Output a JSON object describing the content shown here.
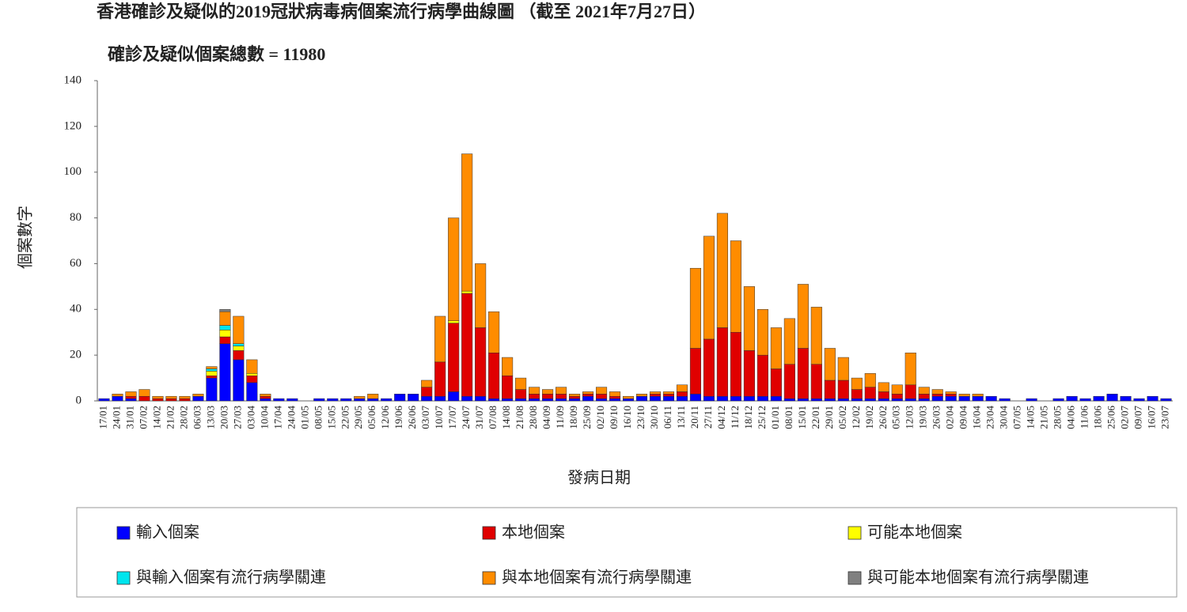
{
  "chart_data": {
    "type": "bar",
    "stacked": true,
    "title": "香港確診及疑似的2019冠狀病毒病個案流行病學曲線圖 （截至 2021年7月27日）",
    "subtitle": "確診及疑似個案總數 = 11980",
    "y_label": "個案數字",
    "x_label": "發病日期",
    "ylim": [
      0,
      140
    ],
    "yticks": [
      0,
      20,
      40,
      60,
      80,
      100,
      120,
      140
    ],
    "grid": false,
    "categories": [
      "17/01",
      "24/01",
      "31/01",
      "07/02",
      "14/02",
      "21/02",
      "28/02",
      "06/03",
      "13/03",
      "20/03",
      "27/03",
      "03/04",
      "10/04",
      "17/04",
      "24/04",
      "01/05",
      "08/05",
      "15/05",
      "22/05",
      "29/05",
      "05/06",
      "12/06",
      "19/06",
      "26/06",
      "03/07",
      "10/07",
      "17/07",
      "24/07",
      "31/07",
      "07/08",
      "14/08",
      "21/08",
      "28/08",
      "04/09",
      "11/09",
      "18/09",
      "25/09",
      "02/10",
      "09/10",
      "16/10",
      "23/10",
      "30/10",
      "06/11",
      "13/11",
      "20/11",
      "27/11",
      "04/12",
      "11/12",
      "18/12",
      "25/12",
      "01/01",
      "08/01",
      "15/01",
      "22/01",
      "29/01",
      "05/02",
      "12/02",
      "19/02",
      "26/02",
      "05/03",
      "12/03",
      "19/03",
      "26/03",
      "02/04",
      "09/04",
      "16/04",
      "23/04",
      "30/04",
      "07/05",
      "14/05",
      "21/05",
      "28/05",
      "04/06",
      "11/06",
      "18/06",
      "25/06",
      "02/07",
      "09/07",
      "16/07",
      "23/07"
    ],
    "series": [
      {
        "name": "輸入個案",
        "color": "#0000ff",
        "values": [
          1,
          2,
          1,
          0,
          0,
          0,
          0,
          2,
          10,
          25,
          18,
          8,
          1,
          1,
          1,
          0,
          1,
          1,
          1,
          1,
          1,
          1,
          3,
          3,
          2,
          2,
          4,
          2,
          2,
          1,
          1,
          1,
          1,
          1,
          1,
          1,
          2,
          1,
          1,
          1,
          2,
          2,
          2,
          2,
          3,
          2,
          2,
          2,
          2,
          2,
          2,
          1,
          1,
          1,
          1,
          1,
          1,
          1,
          1,
          1,
          1,
          1,
          2,
          2,
          2,
          2,
          2,
          1,
          0,
          1,
          0,
          1,
          2,
          1,
          2,
          3,
          2,
          1,
          2,
          1
        ]
      },
      {
        "name": "本地個案",
        "color": "#e00000",
        "values": [
          0,
          0,
          1,
          2,
          1,
          1,
          1,
          0,
          1,
          3,
          4,
          3,
          1,
          0,
          0,
          0,
          0,
          0,
          0,
          0,
          0,
          0,
          0,
          0,
          4,
          15,
          30,
          45,
          30,
          20,
          10,
          4,
          2,
          2,
          2,
          1,
          1,
          2,
          1,
          0,
          0,
          1,
          1,
          2,
          20,
          25,
          30,
          28,
          20,
          18,
          12,
          15,
          22,
          15,
          8,
          8,
          4,
          5,
          3,
          2,
          6,
          2,
          1,
          1,
          0,
          0,
          0,
          0,
          0,
          0,
          0,
          0,
          0,
          0,
          0,
          0,
          0,
          0,
          0,
          0
        ]
      },
      {
        "name": "可能本地個案",
        "color": "#ffff00",
        "values": [
          0,
          0,
          0,
          0,
          0,
          0,
          0,
          0,
          2,
          3,
          2,
          1,
          0,
          0,
          0,
          0,
          0,
          0,
          0,
          0,
          0,
          0,
          0,
          0,
          0,
          0,
          1,
          1,
          0,
          0,
          0,
          0,
          0,
          0,
          0,
          0,
          0,
          0,
          0,
          0,
          0,
          0,
          0,
          0,
          0,
          0,
          0,
          0,
          0,
          0,
          0,
          0,
          0,
          0,
          0,
          0,
          0,
          0,
          0,
          0,
          0,
          0,
          0,
          0,
          0,
          0,
          0,
          0,
          0,
          0,
          0,
          0,
          0,
          0,
          0,
          0,
          0,
          0,
          0,
          0
        ]
      },
      {
        "name": "與輸入個案有流行病學關連",
        "color": "#00e5ee",
        "values": [
          0,
          0,
          0,
          0,
          0,
          0,
          0,
          0,
          1,
          2,
          1,
          0,
          0,
          0,
          0,
          0,
          0,
          0,
          0,
          0,
          0,
          0,
          0,
          0,
          0,
          0,
          0,
          0,
          0,
          0,
          0,
          0,
          0,
          0,
          0,
          0,
          0,
          0,
          0,
          0,
          0,
          0,
          0,
          0,
          0,
          0,
          0,
          0,
          0,
          0,
          0,
          0,
          0,
          0,
          0,
          0,
          0,
          0,
          0,
          0,
          0,
          0,
          0,
          0,
          0,
          0,
          0,
          0,
          0,
          0,
          0,
          0,
          0,
          0,
          0,
          0,
          0,
          0,
          0,
          0
        ]
      },
      {
        "name": "與本地個案有流行病學關連",
        "color": "#ff8c00",
        "values": [
          0,
          1,
          2,
          3,
          1,
          1,
          1,
          1,
          1,
          6,
          12,
          6,
          1,
          0,
          0,
          0,
          0,
          0,
          0,
          1,
          2,
          0,
          0,
          0,
          3,
          20,
          45,
          60,
          28,
          18,
          8,
          5,
          3,
          2,
          3,
          1,
          1,
          3,
          2,
          1,
          1,
          1,
          1,
          3,
          35,
          45,
          50,
          40,
          28,
          20,
          18,
          20,
          28,
          25,
          14,
          10,
          5,
          6,
          4,
          4,
          14,
          3,
          2,
          1,
          1,
          1,
          0,
          0,
          0,
          0,
          0,
          0,
          0,
          0,
          0,
          0,
          0,
          0,
          0,
          0
        ]
      },
      {
        "name": "與可能本地個案有流行病學關連",
        "color": "#808080",
        "values": [
          0,
          0,
          0,
          0,
          0,
          0,
          0,
          0,
          0,
          1,
          0,
          0,
          0,
          0,
          0,
          0,
          0,
          0,
          0,
          0,
          0,
          0,
          0,
          0,
          0,
          0,
          0,
          0,
          0,
          0,
          0,
          0,
          0,
          0,
          0,
          0,
          0,
          0,
          0,
          0,
          0,
          0,
          0,
          0,
          0,
          0,
          0,
          0,
          0,
          0,
          0,
          0,
          0,
          0,
          0,
          0,
          0,
          0,
          0,
          0,
          0,
          0,
          0,
          0,
          0,
          0,
          0,
          0,
          0,
          0,
          0,
          0,
          0,
          0,
          0,
          0,
          0,
          0,
          0,
          0
        ]
      }
    ]
  }
}
